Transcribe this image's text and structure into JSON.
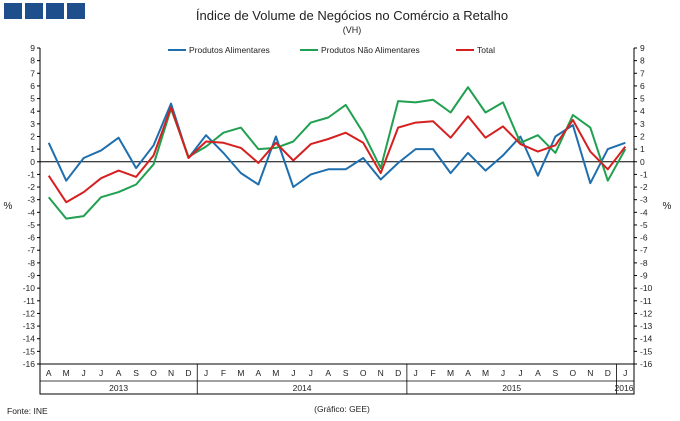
{
  "logo": {
    "icon": "ine-logo-squares"
  },
  "colors": {
    "alimentares": "#1f6fae",
    "nao_alimentares": "#20a050",
    "total": "#d62020",
    "grid": "#000000",
    "logo": "#1f4e8c"
  },
  "footer": {
    "source": "Fonte: INE",
    "credit": "(Gráfico: GEE)"
  },
  "chart_data": {
    "type": "line",
    "title": "Índice de Volume de Negócios no Comércio a Retalho",
    "subtitle": "(VH)",
    "ylabel_left": "%",
    "ylabel_right": "%",
    "ylim": [
      -16,
      9
    ],
    "yticks": [
      9,
      8,
      7,
      6,
      5,
      4,
      3,
      2,
      1,
      0,
      -1,
      -2,
      -3,
      -4,
      -5,
      -6,
      -7,
      -8,
      -9,
      -10,
      -11,
      -12,
      -13,
      -14,
      -15,
      -16
    ],
    "legend_position": "top",
    "categories": [
      "A",
      "M",
      "J",
      "J",
      "A",
      "S",
      "O",
      "N",
      "D",
      "J",
      "F",
      "M",
      "A",
      "M",
      "J",
      "J",
      "A",
      "S",
      "O",
      "N",
      "D",
      "J",
      "F",
      "M",
      "A",
      "M",
      "J",
      "J",
      "A",
      "S",
      "O",
      "N",
      "D",
      "J"
    ],
    "years": [
      {
        "label": "2013",
        "start": 0,
        "end": 8
      },
      {
        "label": "2014",
        "start": 9,
        "end": 20
      },
      {
        "label": "2015",
        "start": 21,
        "end": 32
      },
      {
        "label": "2016",
        "start": 33,
        "end": 33
      }
    ],
    "series": [
      {
        "name": "Produtos Alimentares",
        "color_key": "alimentares",
        "values": [
          1.5,
          -1.5,
          0.3,
          0.9,
          1.9,
          -0.5,
          1.3,
          4.6,
          0.3,
          2.1,
          0.7,
          -0.9,
          -1.8,
          2.0,
          -2.0,
          -1.0,
          -0.6,
          -0.6,
          0.3,
          -1.4,
          -0.1,
          1.0,
          1.0,
          -0.9,
          0.7,
          -0.7,
          0.5,
          2.0,
          -1.1,
          2.0,
          2.9,
          -1.7,
          1.0,
          1.5
        ]
      },
      {
        "name": "Produtos Não Alimentares",
        "color_key": "nao_alimentares",
        "values": [
          -2.8,
          -4.5,
          -4.3,
          -2.8,
          -2.4,
          -1.8,
          -0.2,
          4.2,
          0.4,
          1.2,
          2.3,
          2.7,
          1.0,
          1.1,
          1.6,
          3.1,
          3.5,
          4.5,
          2.3,
          -0.5,
          4.8,
          4.7,
          4.9,
          3.9,
          5.9,
          3.9,
          4.7,
          1.5,
          2.1,
          0.7,
          3.7,
          2.7,
          -1.5,
          1.0
        ]
      },
      {
        "name": "Total",
        "color_key": "total",
        "values": [
          -1.1,
          -3.2,
          -2.4,
          -1.3,
          -0.7,
          -1.2,
          0.5,
          4.3,
          0.3,
          1.6,
          1.5,
          1.1,
          -0.1,
          1.5,
          0.1,
          1.4,
          1.8,
          2.3,
          1.5,
          -0.9,
          2.7,
          3.1,
          3.2,
          1.9,
          3.6,
          1.9,
          2.8,
          1.4,
          0.8,
          1.3,
          3.3,
          0.8,
          -0.6,
          1.2
        ]
      }
    ]
  }
}
